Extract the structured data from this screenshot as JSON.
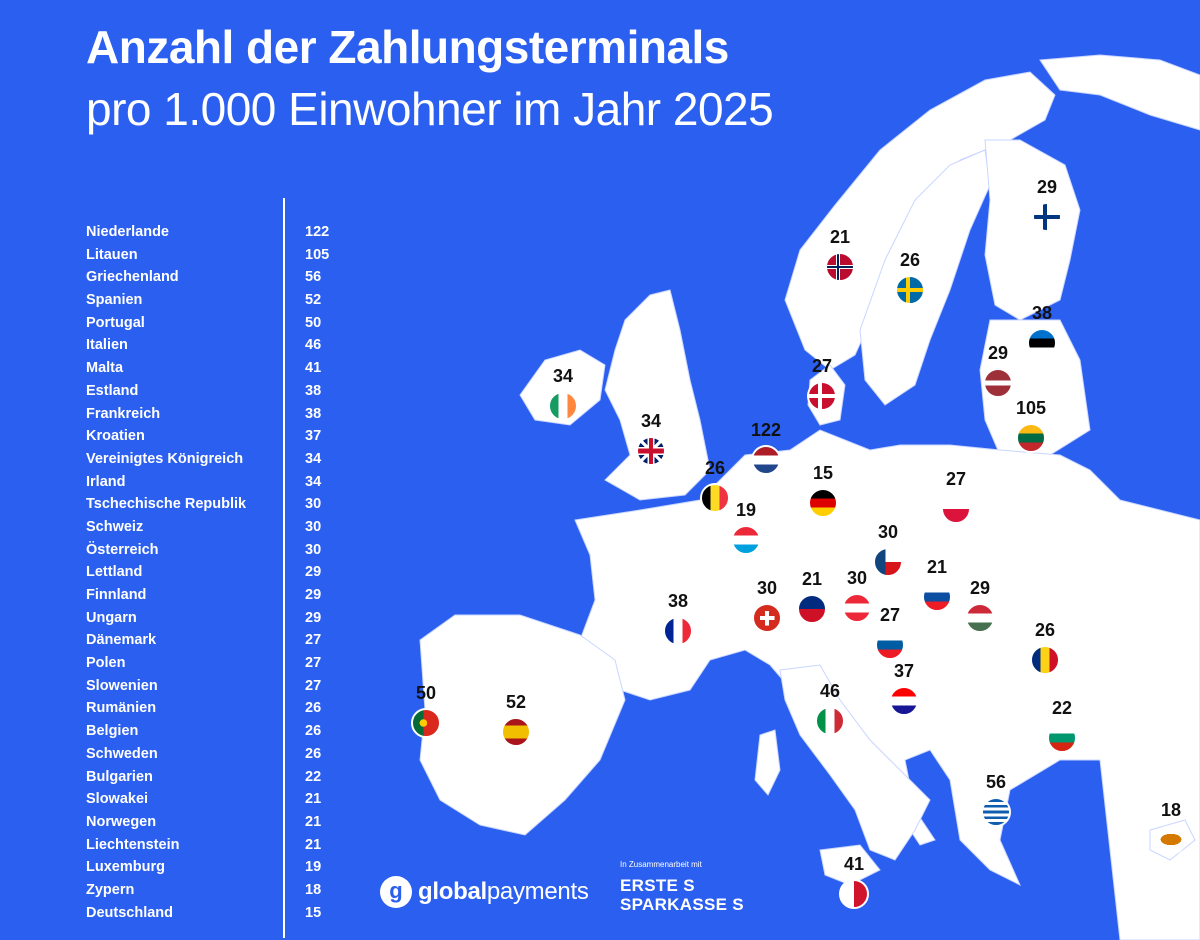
{
  "title_line1": "Anzahl der Zahlungsterminals",
  "title_line2": "pro 1.000 Einwohner im Jahr 2025",
  "ranking": [
    {
      "country": "Niederlande",
      "value": "122"
    },
    {
      "country": "Litauen",
      "value": "105"
    },
    {
      "country": "Griechenland",
      "value": "56"
    },
    {
      "country": "Spanien",
      "value": "52"
    },
    {
      "country": "Portugal",
      "value": "50"
    },
    {
      "country": "Italien",
      "value": "46"
    },
    {
      "country": "Malta",
      "value": "41"
    },
    {
      "country": "Estland",
      "value": "38"
    },
    {
      "country": "Frankreich",
      "value": "38"
    },
    {
      "country": "Kroatien",
      "value": "37"
    },
    {
      "country": "Vereinigtes Königreich",
      "value": "34"
    },
    {
      "country": "Irland",
      "value": "34"
    },
    {
      "country": "Tschechische Republik",
      "value": "30"
    },
    {
      "country": "Schweiz",
      "value": "30"
    },
    {
      "country": "Österreich",
      "value": "30"
    },
    {
      "country": "Lettland",
      "value": "29"
    },
    {
      "country": "Finnland",
      "value": "29"
    },
    {
      "country": "Ungarn",
      "value": "29"
    },
    {
      "country": "Dänemark",
      "value": "27"
    },
    {
      "country": "Polen",
      "value": "27"
    },
    {
      "country": "Slowenien",
      "value": "27"
    },
    {
      "country": "Rumänien",
      "value": "26"
    },
    {
      "country": "Belgien",
      "value": "26"
    },
    {
      "country": "Schweden",
      "value": "26"
    },
    {
      "country": "Bulgarien",
      "value": "22"
    },
    {
      "country": "Slowakei",
      "value": "21"
    },
    {
      "country": "Norwegen",
      "value": "21"
    },
    {
      "country": "Liechtenstein",
      "value": "21"
    },
    {
      "country": "Luxemburg",
      "value": "19"
    },
    {
      "country": "Zypern",
      "value": "18"
    },
    {
      "country": "Deutschland",
      "value": "15"
    }
  ],
  "map_markers": [
    {
      "country": "Norwegen",
      "value": "21",
      "flag": "norway-flag-icon"
    },
    {
      "country": "Schweden",
      "value": "26",
      "flag": "sweden-flag-icon"
    },
    {
      "country": "Finnland",
      "value": "29",
      "flag": "finland-flag-icon"
    },
    {
      "country": "Estland",
      "value": "38",
      "flag": "estonia-flag-icon"
    },
    {
      "country": "Lettland",
      "value": "29",
      "flag": "latvia-flag-icon"
    },
    {
      "country": "Litauen",
      "value": "105",
      "flag": "lithuania-flag-icon"
    },
    {
      "country": "Dänemark",
      "value": "27",
      "flag": "denmark-flag-icon"
    },
    {
      "country": "Irland",
      "value": "34",
      "flag": "ireland-flag-icon"
    },
    {
      "country": "Vereinigtes Königreich",
      "value": "34",
      "flag": "uk-flag-icon"
    },
    {
      "country": "Niederlande",
      "value": "122",
      "flag": "netherlands-flag-icon"
    },
    {
      "country": "Belgien",
      "value": "26",
      "flag": "belgium-flag-icon"
    },
    {
      "country": "Luxemburg",
      "value": "19",
      "flag": "luxembourg-flag-icon"
    },
    {
      "country": "Deutschland",
      "value": "15",
      "flag": "germany-flag-icon"
    },
    {
      "country": "Polen",
      "value": "27",
      "flag": "poland-flag-icon"
    },
    {
      "country": "Tschechische Republik",
      "value": "30",
      "flag": "czechia-flag-icon"
    },
    {
      "country": "Slowakei",
      "value": "21",
      "flag": "slovakia-flag-icon"
    },
    {
      "country": "Ungarn",
      "value": "29",
      "flag": "hungary-flag-icon"
    },
    {
      "country": "Österreich",
      "value": "30",
      "flag": "austria-flag-icon"
    },
    {
      "country": "Liechtenstein",
      "value": "21",
      "flag": "liechtenstein-flag-icon"
    },
    {
      "country": "Schweiz",
      "value": "30",
      "flag": "switzerland-flag-icon"
    },
    {
      "country": "Frankreich",
      "value": "38",
      "flag": "france-flag-icon"
    },
    {
      "country": "Slowenien",
      "value": "27",
      "flag": "slovenia-flag-icon"
    },
    {
      "country": "Kroatien",
      "value": "37",
      "flag": "croatia-flag-icon"
    },
    {
      "country": "Rumänien",
      "value": "26",
      "flag": "romania-flag-icon"
    },
    {
      "country": "Bulgarien",
      "value": "22",
      "flag": "bulgaria-flag-icon"
    },
    {
      "country": "Italien",
      "value": "46",
      "flag": "italy-flag-icon"
    },
    {
      "country": "Portugal",
      "value": "50",
      "flag": "portugal-flag-icon"
    },
    {
      "country": "Spanien",
      "value": "52",
      "flag": "spain-flag-icon"
    },
    {
      "country": "Griechenland",
      "value": "56",
      "flag": "greece-flag-icon"
    },
    {
      "country": "Malta",
      "value": "41",
      "flag": "malta-flag-icon"
    },
    {
      "country": "Zypern",
      "value": "18",
      "flag": "cyprus-flag-icon"
    }
  ],
  "colors": {
    "background": "#2b5ff0",
    "land": "#ffffff",
    "text": "#ffffff",
    "marker_value": "#111111"
  },
  "branding": {
    "gp_letter": "g",
    "gp_name_bold": "global",
    "gp_name_regular": "payments",
    "cooperation": "In Zusammenarbeit mit",
    "erste_line1": "ERSTE S",
    "erste_line2": "SPARKASSE S"
  }
}
